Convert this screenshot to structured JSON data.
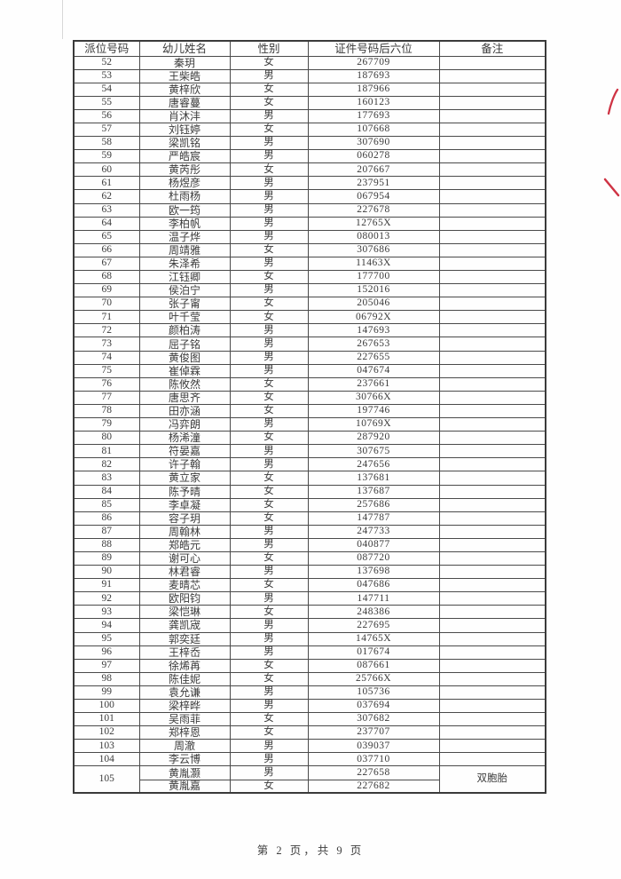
{
  "page": {
    "footer": "第 2 页，共 9 页"
  },
  "colors": {
    "table_border": "#4a4a4a",
    "text": "#3b3b3b",
    "pen_mark": "#cf3344"
  },
  "table": {
    "headers": [
      "派位号码",
      "幼儿姓名",
      "性别",
      "证件号码后六位",
      "备注"
    ],
    "rows": [
      [
        "52",
        "秦玥",
        "女",
        "267709",
        ""
      ],
      [
        "53",
        "王柴皓",
        "男",
        "187693",
        ""
      ],
      [
        "54",
        "黄梓欣",
        "女",
        "187966",
        ""
      ],
      [
        "55",
        "唐睿蔓",
        "女",
        "160123",
        ""
      ],
      [
        "56",
        "肖沐沣",
        "男",
        "177693",
        ""
      ],
      [
        "57",
        "刘钰婷",
        "女",
        "107668",
        ""
      ],
      [
        "58",
        "梁凯铭",
        "男",
        "307690",
        ""
      ],
      [
        "59",
        "严皓宸",
        "男",
        "060278",
        ""
      ],
      [
        "60",
        "黄芮彤",
        "女",
        "207667",
        ""
      ],
      [
        "61",
        "杨煜彦",
        "男",
        "237951",
        ""
      ],
      [
        "62",
        "杜雨杨",
        "男",
        "067954",
        ""
      ],
      [
        "63",
        "欧一筠",
        "男",
        "227678",
        ""
      ],
      [
        "64",
        "李柏帆",
        "男",
        "12765X",
        ""
      ],
      [
        "65",
        "温子烨",
        "男",
        "080013",
        ""
      ],
      [
        "66",
        "周靖雅",
        "女",
        "307686",
        ""
      ],
      [
        "67",
        "朱泽希",
        "男",
        "11463X",
        ""
      ],
      [
        "68",
        "江钰卿",
        "女",
        "177700",
        ""
      ],
      [
        "69",
        "侯泊宁",
        "男",
        "152016",
        ""
      ],
      [
        "70",
        "张子甯",
        "女",
        "205046",
        ""
      ],
      [
        "71",
        "叶千莹",
        "女",
        "06792X",
        ""
      ],
      [
        "72",
        "颜柏涛",
        "男",
        "147693",
        ""
      ],
      [
        "73",
        "屈子铭",
        "男",
        "267653",
        ""
      ],
      [
        "74",
        "黄俊图",
        "男",
        "227655",
        ""
      ],
      [
        "75",
        "崔倬霖",
        "男",
        "047674",
        ""
      ],
      [
        "76",
        "陈攸然",
        "女",
        "237661",
        ""
      ],
      [
        "77",
        "唐思齐",
        "女",
        "30766X",
        ""
      ],
      [
        "78",
        "田亦涵",
        "女",
        "197746",
        ""
      ],
      [
        "79",
        "冯弈朗",
        "男",
        "10769X",
        ""
      ],
      [
        "80",
        "杨浠潼",
        "女",
        "287920",
        ""
      ],
      [
        "81",
        "符晏嘉",
        "男",
        "307675",
        ""
      ],
      [
        "82",
        "许子翰",
        "男",
        "247656",
        ""
      ],
      [
        "83",
        "黄立家",
        "女",
        "137681",
        ""
      ],
      [
        "84",
        "陈予晴",
        "女",
        "137687",
        ""
      ],
      [
        "85",
        "李卓凝",
        "女",
        "257686",
        ""
      ],
      [
        "86",
        "容子玥",
        "女",
        "147787",
        ""
      ],
      [
        "87",
        "周翰林",
        "男",
        "247733",
        ""
      ],
      [
        "88",
        "郑皓元",
        "男",
        "040877",
        ""
      ],
      [
        "89",
        "谢可心",
        "女",
        "087720",
        ""
      ],
      [
        "90",
        "林君睿",
        "男",
        "137698",
        ""
      ],
      [
        "91",
        "麦晴芯",
        "女",
        "047686",
        ""
      ],
      [
        "92",
        "欧阳钧",
        "男",
        "147711",
        ""
      ],
      [
        "93",
        "梁恺琳",
        "女",
        "248386",
        ""
      ],
      [
        "94",
        "龚凯宬",
        "男",
        "227695",
        ""
      ],
      [
        "95",
        "郭奕廷",
        "男",
        "14765X",
        ""
      ],
      [
        "96",
        "王梓岙",
        "男",
        "017674",
        ""
      ],
      [
        "97",
        "徐烯苒",
        "女",
        "087661",
        ""
      ],
      [
        "98",
        "陈佳妮",
        "女",
        "25766X",
        ""
      ],
      [
        "99",
        "袁允谦",
        "男",
        "105736",
        ""
      ],
      [
        "100",
        "梁梓晔",
        "男",
        "037694",
        ""
      ],
      [
        "101",
        "吴雨菲",
        "女",
        "307682",
        ""
      ],
      [
        "102",
        "郑梓恩",
        "女",
        "237707",
        ""
      ],
      [
        "103",
        "周澈",
        "男",
        "039037",
        ""
      ],
      [
        "104",
        "李云博",
        "男",
        "037710",
        ""
      ]
    ],
    "merged_row": {
      "number": "105",
      "note": "双胞胎",
      "entries": [
        [
          "黄胤灏",
          "男",
          "227658"
        ],
        [
          "黄胤嘉",
          "女",
          "227682"
        ]
      ]
    }
  }
}
